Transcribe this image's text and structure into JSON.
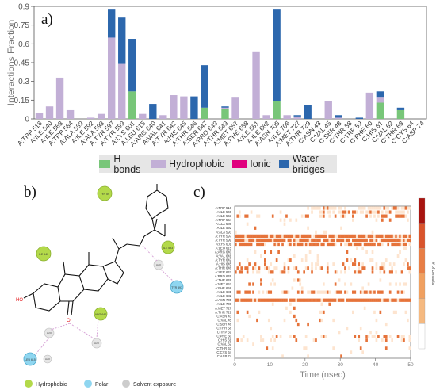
{
  "colors": {
    "hbond": "#78c679",
    "hydrophobic": "#c2afd6",
    "ionic": "#e0007e",
    "water": "#2c67ad",
    "heat_low": "#fde4cf",
    "heat_high": "#e6733a"
  },
  "panel_a": {
    "letter": "a)",
    "ylabel": "Interactions Fraction",
    "legend": [
      {
        "label": "H-bonds",
        "color": "#78c679"
      },
      {
        "label": "Hydrophobic",
        "color": "#c2afd6"
      },
      {
        "label": "Ionic",
        "color": "#e0007e"
      },
      {
        "label": "Water bridges",
        "color": "#2c67ad"
      }
    ]
  },
  "panel_b": {
    "letter": "b)",
    "legend": [
      {
        "label": "Hydrophobic",
        "color": "#b3d94a"
      },
      {
        "label": "Polar",
        "color": "#8fd6f0"
      },
      {
        "label": "Solvent exposure",
        "color": "#cccccc"
      }
    ],
    "residues": [
      "TYR 59",
      "ILE 540",
      "ILE 593",
      "TYR 597",
      "ARG 640",
      "LEU 615"
    ],
    "small_labels": [
      "H2O",
      "H2O",
      "H2O",
      "H2O",
      "HO",
      "O"
    ]
  },
  "panel_c": {
    "letter": "c)",
    "xlabel": "Time (nsec)",
    "colorbar_label": "# of contacts"
  },
  "chart_data": [
    {
      "type": "bar",
      "title": "",
      "ylabel": "Interactions Fraction",
      "ylim": [
        0,
        0.9
      ],
      "yticks": [
        0,
        0.15,
        0.3,
        0.45,
        0.6,
        0.75,
        0.9
      ],
      "yticklabels": [
        "0",
        "0.15",
        "0.3",
        "0.45",
        "0.6",
        "0.75",
        "0.9"
      ],
      "stacked": true,
      "categories": [
        "A:TRP 516",
        "A:ILE 540",
        "A:ILE 563",
        "A:TRP 564",
        "A:ALA 589",
        "A:ILE 592",
        "A:ALA 593",
        "A:TYR 597",
        "A:TYR 599",
        "A:LYS 601",
        "A:LEU 615",
        "A:ARG 640",
        "A:VAL 641",
        "A:TYR 642",
        "A:HIS 645",
        "A:THR 646",
        "A:SER 647",
        "A:PRO 649",
        "A:THR 649",
        "A:MET 657",
        "A:PHE 658",
        "A:ILE 681",
        "A:ILE 682",
        "A:ASN 705",
        "A:ILE 706",
        "A:MET 727",
        "A:THR 729",
        "C:ASN 43",
        "C:VAL 45",
        "C:SER 48",
        "C:THR 58",
        "C:TRP 59",
        "C:PHE 60",
        "C:HIS 61",
        "C:VAL 62",
        "C:THR 63",
        "C:CYS 64",
        "C:ASP 74"
      ],
      "series": [
        {
          "name": "H-bonds",
          "values": [
            0,
            0,
            0,
            0,
            0,
            0,
            0,
            0,
            0,
            0.22,
            0,
            0,
            0,
            0,
            0,
            0,
            0.09,
            0,
            0.08,
            0,
            0,
            0,
            0,
            0.14,
            0,
            0,
            0,
            0,
            0,
            0,
            0,
            0,
            0,
            0.13,
            0,
            0.07,
            0,
            0
          ]
        },
        {
          "name": "Hydrophobic",
          "values": [
            0.05,
            0.1,
            0.33,
            0.07,
            0,
            0.01,
            0.04,
            0.65,
            0.44,
            0,
            0.04,
            0,
            0.03,
            0.19,
            0.18,
            0,
            0,
            0,
            0.01,
            0.17,
            0,
            0.54,
            0.03,
            0,
            0.03,
            0.02,
            0,
            0,
            0.14,
            0.01,
            0,
            0,
            0.21,
            0.04,
            0,
            0,
            0,
            0
          ]
        },
        {
          "name": "Ionic",
          "values": [
            0,
            0,
            0,
            0,
            0,
            0,
            0,
            0,
            0,
            0,
            0,
            0,
            0,
            0,
            0,
            0,
            0,
            0,
            0,
            0,
            0,
            0,
            0,
            0,
            0,
            0,
            0,
            0,
            0,
            0,
            0,
            0,
            0,
            0,
            0,
            0,
            0,
            0
          ]
        },
        {
          "name": "Water bridges",
          "values": [
            0,
            0,
            0,
            0,
            0,
            0,
            0,
            0.23,
            0.37,
            0.42,
            0,
            0.12,
            0,
            0,
            0,
            0.18,
            0.34,
            0,
            0.01,
            0,
            0,
            0,
            0,
            0.74,
            0,
            0.01,
            0.11,
            0,
            0,
            0.02,
            0,
            0.01,
            0,
            0.05,
            0,
            0.02,
            0,
            0
          ]
        }
      ]
    },
    {
      "type": "heatmap",
      "xlabel": "Time (nsec)",
      "xlim": [
        0,
        50
      ],
      "xticks": [
        0,
        10,
        20,
        30,
        40,
        50
      ],
      "rows": [
        "A:TRP 516",
        "A:ILE 540",
        "A:ILE 563",
        "A:TRP 564",
        "A:ALA 589",
        "A:ILE 592",
        "A:ALA 593",
        "A:TYR 597",
        "A:TYR 599",
        "A:LYS 601",
        "A:LEU 615",
        "A:ARG 640",
        "A:VAL 641",
        "A:TYR 642",
        "A:HIS 645",
        "A:THR 646",
        "A:SER 647",
        "A:PRO 649",
        "A:THR 649",
        "A:MET 657",
        "A:PHE 658",
        "A:ILE 681",
        "A:ILE 682",
        "A:ASN 705",
        "A:ILE 706",
        "A:MET 727",
        "A:THR 729",
        "C:ASN 43",
        "C:VAL 45",
        "C:SER 48",
        "C:THR 58",
        "C:TRP 59",
        "C:PHE 60",
        "C:HIS 61",
        "C:VAL 62",
        "C:THR 63",
        "C:CYS 64",
        "C:ASP 74"
      ],
      "row_density": [
        0.05,
        0.1,
        0.33,
        0.07,
        0.02,
        0.02,
        0.04,
        0.88,
        0.81,
        0.64,
        0.04,
        0.12,
        0.03,
        0.19,
        0.18,
        0.43,
        0.43,
        0.02,
        0.1,
        0.17,
        0.02,
        0.54,
        0.03,
        0.88,
        0.03,
        0.03,
        0.11,
        0.02,
        0.14,
        0.03,
        0.02,
        0.02,
        0.21,
        0.18,
        0.02,
        0.09,
        0.02,
        0.02
      ],
      "colorbar_label": "# of contacts"
    }
  ]
}
